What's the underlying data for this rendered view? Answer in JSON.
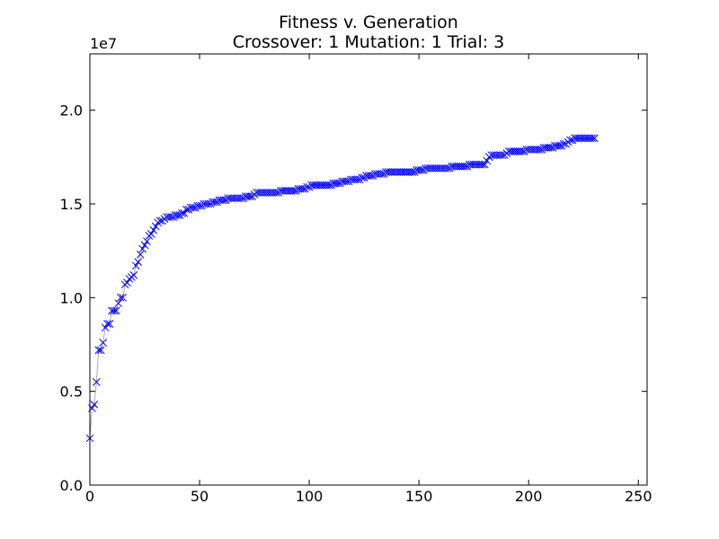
{
  "chart_data": {
    "type": "line",
    "title": "Fitness v. Generation",
    "subtitle": "Crossover: 1 Mutation: 1 Trial: 3",
    "y_offset_label": "1e7",
    "x": [
      0,
      1,
      2,
      3,
      4,
      5,
      6,
      7,
      8,
      9,
      10,
      11,
      12,
      13,
      14,
      15,
      16,
      17,
      18,
      19,
      20,
      21,
      22,
      23,
      24,
      25,
      26,
      27,
      28,
      29,
      30,
      31,
      32,
      33,
      34,
      35,
      36,
      37,
      38,
      39,
      40,
      41,
      42,
      43,
      44,
      45,
      46,
      47,
      48,
      49,
      50,
      51,
      52,
      53,
      54,
      55,
      56,
      57,
      58,
      59,
      60,
      61,
      62,
      63,
      64,
      65,
      66,
      67,
      68,
      69,
      70,
      71,
      72,
      73,
      74,
      75,
      76,
      77,
      78,
      79,
      80,
      81,
      82,
      83,
      84,
      85,
      86,
      87,
      88,
      89,
      90,
      91,
      92,
      93,
      94,
      95,
      96,
      97,
      98,
      99,
      100,
      101,
      102,
      103,
      104,
      105,
      106,
      107,
      108,
      109,
      110,
      111,
      112,
      113,
      114,
      115,
      116,
      117,
      118,
      119,
      120,
      121,
      122,
      123,
      124,
      125,
      126,
      127,
      128,
      129,
      130,
      131,
      132,
      133,
      134,
      135,
      136,
      137,
      138,
      139,
      140,
      141,
      142,
      143,
      144,
      145,
      146,
      147,
      148,
      149,
      150,
      151,
      152,
      153,
      154,
      155,
      156,
      157,
      158,
      159,
      160,
      161,
      162,
      163,
      164,
      165,
      166,
      167,
      168,
      169,
      170,
      171,
      172,
      173,
      174,
      175,
      176,
      177,
      178,
      179,
      180,
      181,
      182,
      183,
      184,
      185,
      186,
      187,
      188,
      189,
      190,
      191,
      192,
      193,
      194,
      195,
      196,
      197,
      198,
      199,
      200,
      201,
      202,
      203,
      204,
      205,
      206,
      207,
      208,
      209,
      210,
      211,
      212,
      213,
      214,
      215,
      216,
      217,
      218,
      219,
      220,
      221,
      222,
      223,
      224,
      225,
      226,
      227,
      228,
      229,
      230
    ],
    "series": [
      {
        "color": "#0000ff",
        "line_color": "#999999",
        "marker": "x",
        "values": [
          0.25,
          0.41,
          0.43,
          0.55,
          0.72,
          0.72,
          0.76,
          0.84,
          0.86,
          0.86,
          0.93,
          0.93,
          0.93,
          0.97,
          1.0,
          1.0,
          1.07,
          1.08,
          1.1,
          1.11,
          1.12,
          1.17,
          1.19,
          1.23,
          1.26,
          1.28,
          1.3,
          1.33,
          1.34,
          1.36,
          1.38,
          1.4,
          1.41,
          1.41,
          1.42,
          1.43,
          1.43,
          1.43,
          1.43,
          1.44,
          1.44,
          1.44,
          1.45,
          1.45,
          1.47,
          1.47,
          1.48,
          1.48,
          1.48,
          1.49,
          1.49,
          1.49,
          1.5,
          1.5,
          1.5,
          1.5,
          1.51,
          1.51,
          1.51,
          1.52,
          1.52,
          1.52,
          1.52,
          1.53,
          1.53,
          1.53,
          1.53,
          1.53,
          1.53,
          1.53,
          1.53,
          1.54,
          1.54,
          1.54,
          1.54,
          1.55,
          1.56,
          1.56,
          1.56,
          1.56,
          1.56,
          1.56,
          1.56,
          1.56,
          1.56,
          1.56,
          1.56,
          1.57,
          1.57,
          1.57,
          1.57,
          1.57,
          1.57,
          1.57,
          1.57,
          1.58,
          1.58,
          1.58,
          1.58,
          1.59,
          1.59,
          1.6,
          1.6,
          1.6,
          1.6,
          1.6,
          1.6,
          1.6,
          1.6,
          1.6,
          1.6,
          1.61,
          1.61,
          1.61,
          1.61,
          1.62,
          1.62,
          1.62,
          1.62,
          1.63,
          1.63,
          1.63,
          1.63,
          1.63,
          1.64,
          1.64,
          1.65,
          1.65,
          1.65,
          1.65,
          1.66,
          1.66,
          1.66,
          1.66,
          1.66,
          1.67,
          1.67,
          1.67,
          1.67,
          1.67,
          1.67,
          1.67,
          1.67,
          1.67,
          1.67,
          1.67,
          1.67,
          1.67,
          1.67,
          1.68,
          1.68,
          1.68,
          1.68,
          1.69,
          1.69,
          1.69,
          1.69,
          1.69,
          1.69,
          1.69,
          1.69,
          1.69,
          1.69,
          1.69,
          1.69,
          1.7,
          1.7,
          1.7,
          1.7,
          1.7,
          1.7,
          1.7,
          1.7,
          1.71,
          1.71,
          1.71,
          1.71,
          1.71,
          1.71,
          1.71,
          1.71,
          1.73,
          1.75,
          1.76,
          1.76,
          1.76,
          1.76,
          1.76,
          1.76,
          1.76,
          1.77,
          1.78,
          1.78,
          1.78,
          1.78,
          1.78,
          1.78,
          1.78,
          1.78,
          1.79,
          1.79,
          1.79,
          1.79,
          1.79,
          1.79,
          1.79,
          1.79,
          1.8,
          1.8,
          1.8,
          1.8,
          1.8,
          1.81,
          1.81,
          1.81,
          1.81,
          1.82,
          1.82,
          1.83,
          1.84,
          1.84,
          1.85,
          1.85,
          1.85,
          1.85,
          1.85,
          1.85,
          1.85,
          1.85,
          1.85,
          1.85
        ]
      }
    ],
    "xlim": [
      0,
      254
    ],
    "xticks": [
      0,
      50,
      100,
      150,
      200,
      250
    ],
    "ylim": [
      0,
      2.3
    ],
    "yticks": [
      {
        "value": 0,
        "label": "0.0"
      },
      0.5,
      {
        "value": 1,
        "label": "1.0"
      },
      1.5,
      {
        "value": 2,
        "label": "2.0"
      }
    ]
  }
}
